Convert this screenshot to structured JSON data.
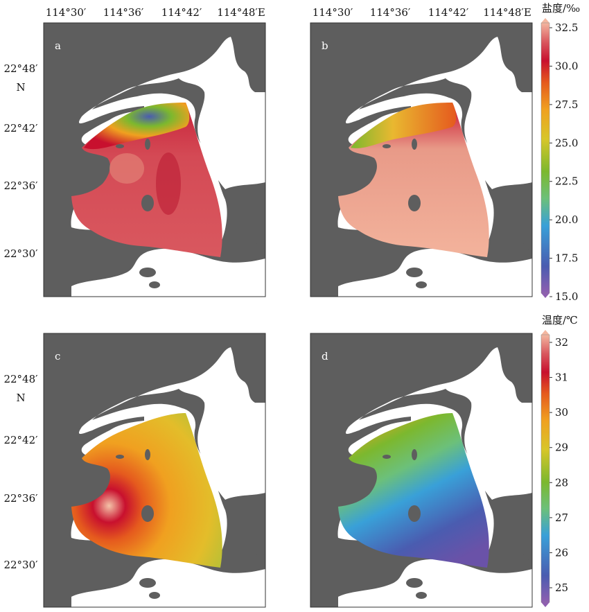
{
  "lon_ticks": [
    "114°30′",
    "114°36′",
    "114°42′",
    "114°48′E"
  ],
  "lat_ticks": [
    "22°48′",
    "22°42′",
    "22°36′",
    "22°30′"
  ],
  "lat_unit": "N",
  "panels": [
    {
      "label": "a",
      "variable": "salinity"
    },
    {
      "label": "b",
      "variable": "salinity"
    },
    {
      "label": "c",
      "variable": "temperature"
    },
    {
      "label": "d",
      "variable": "temperature"
    }
  ],
  "colorbars": {
    "salinity": {
      "title": "盐度/‰",
      "min": 15.0,
      "max": 32.5,
      "ticks": [
        "32.5",
        "30.0",
        "27.5",
        "25.0",
        "22.5",
        "20.0",
        "17.5",
        "15.0"
      ],
      "colormap": [
        "#8f5fb0",
        "#4a5cb0",
        "#39a0d8",
        "#6cc07a",
        "#7cb82e",
        "#d7c62a",
        "#f0a020",
        "#e55a1e",
        "#c8102e",
        "#d9585f",
        "#f4b7a0"
      ]
    },
    "temperature": {
      "title": "温度/℃",
      "min": 25,
      "max": 32,
      "ticks": [
        "32",
        "31",
        "30",
        "29",
        "28",
        "27",
        "26",
        "25"
      ],
      "colormap": [
        "#8f5fb0",
        "#4a5cb0",
        "#39a0d8",
        "#6cc07a",
        "#7cb82e",
        "#d7c62a",
        "#f0a020",
        "#e55a1e",
        "#c8102e",
        "#d9585f",
        "#f4b7a0"
      ]
    }
  },
  "colors": {
    "land": "#5e5e5e",
    "water": "#ffffff",
    "frame": "#333333"
  }
}
